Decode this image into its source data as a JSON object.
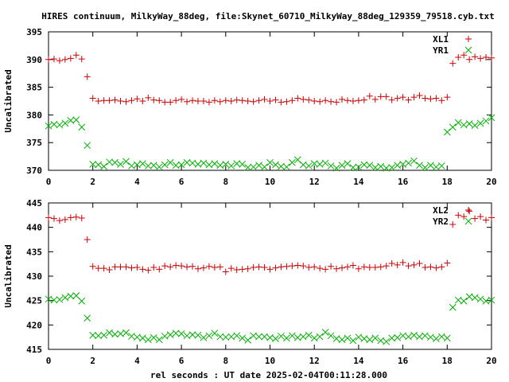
{
  "title": "HIRES continuum, MilkyWay_88deg, file:Skynet_60710_MilkyWay_88deg_129359_79518.cyb.txt",
  "xlabel": "rel seconds : UT date 2025-02-04T00:11:28.000",
  "colors": {
    "red": "#cc0000",
    "green": "#00b000",
    "axis": "#000000"
  },
  "chart_data": [
    {
      "type": "scatter",
      "ylabel": "Uncalibrated",
      "xlim": [
        0,
        20
      ],
      "ylim": [
        370,
        395
      ],
      "xticks": [
        0,
        2,
        4,
        6,
        8,
        10,
        12,
        14,
        16,
        18,
        20
      ],
      "yticks": [
        370,
        375,
        380,
        385,
        390,
        395
      ],
      "legend_position": "top-right",
      "series": [
        {
          "name": "XL1",
          "marker": "+",
          "color": "#cc0000",
          "x": [
            0.0,
            0.25,
            0.5,
            0.75,
            1.0,
            1.25,
            1.5,
            1.75,
            2.0,
            2.25,
            2.5,
            2.75,
            3.0,
            3.25,
            3.5,
            3.75,
            4.0,
            4.25,
            4.5,
            4.75,
            5.0,
            5.25,
            5.5,
            5.75,
            6.0,
            6.25,
            6.5,
            6.75,
            7.0,
            7.25,
            7.5,
            7.75,
            8.0,
            8.25,
            8.5,
            8.75,
            9.0,
            9.25,
            9.5,
            9.75,
            10.0,
            10.25,
            10.5,
            10.75,
            11.0,
            11.25,
            11.5,
            11.75,
            12.0,
            12.25,
            12.5,
            12.75,
            13.0,
            13.25,
            13.5,
            13.75,
            14.0,
            14.25,
            14.5,
            14.75,
            15.0,
            15.25,
            15.5,
            15.75,
            16.0,
            16.25,
            16.5,
            16.75,
            17.0,
            17.25,
            17.5,
            17.75,
            18.0,
            18.25,
            18.5,
            18.75,
            19.0,
            19.25,
            19.5,
            19.75,
            20.0
          ],
          "y": [
            390.0,
            390.1,
            389.8,
            390.0,
            390.2,
            390.8,
            390.1,
            386.9,
            383.0,
            382.5,
            382.6,
            382.6,
            382.7,
            382.5,
            382.4,
            382.6,
            382.9,
            382.5,
            383.1,
            382.7,
            382.6,
            382.3,
            382.3,
            382.6,
            382.8,
            382.4,
            382.6,
            382.5,
            382.5,
            382.3,
            382.6,
            382.4,
            382.6,
            382.5,
            382.7,
            382.6,
            382.5,
            382.4,
            382.6,
            382.8,
            382.5,
            382.7,
            382.3,
            382.4,
            382.6,
            383.0,
            382.8,
            382.7,
            382.5,
            382.4,
            382.6,
            382.4,
            382.3,
            382.8,
            382.6,
            382.5,
            382.6,
            382.7,
            383.4,
            382.8,
            383.3,
            383.3,
            382.7,
            383.0,
            383.2,
            382.7,
            383.2,
            383.5,
            383.0,
            382.9,
            383.0,
            382.6,
            383.2,
            389.3,
            390.4,
            390.8,
            390.0,
            390.5,
            390.2,
            390.4,
            390.3
          ]
        },
        {
          "name": "YR1",
          "marker": "x",
          "color": "#00b000",
          "x": [
            0.0,
            0.25,
            0.5,
            0.75,
            1.0,
            1.25,
            1.5,
            1.75,
            2.0,
            2.25,
            2.5,
            2.75,
            3.0,
            3.25,
            3.5,
            3.75,
            4.0,
            4.25,
            4.5,
            4.75,
            5.0,
            5.25,
            5.5,
            5.75,
            6.0,
            6.25,
            6.5,
            6.75,
            7.0,
            7.25,
            7.5,
            7.75,
            8.0,
            8.25,
            8.5,
            8.75,
            9.0,
            9.25,
            9.5,
            9.75,
            10.0,
            10.25,
            10.5,
            10.75,
            11.0,
            11.25,
            11.5,
            11.75,
            12.0,
            12.25,
            12.5,
            12.75,
            13.0,
            13.25,
            13.5,
            13.75,
            14.0,
            14.25,
            14.5,
            14.75,
            15.0,
            15.25,
            15.5,
            15.75,
            16.0,
            16.25,
            16.5,
            16.75,
            17.0,
            17.25,
            17.5,
            17.75,
            18.0,
            18.25,
            18.5,
            18.75,
            19.0,
            19.25,
            19.5,
            19.75,
            20.0
          ],
          "y": [
            378.0,
            378.3,
            378.2,
            378.5,
            379.0,
            379.1,
            377.8,
            374.5,
            371.1,
            371.0,
            370.7,
            371.5,
            371.4,
            371.1,
            371.6,
            370.8,
            371.0,
            371.2,
            370.8,
            370.9,
            370.6,
            371.0,
            371.4,
            370.9,
            371.0,
            371.4,
            371.3,
            371.1,
            371.3,
            371.0,
            371.2,
            370.9,
            371.1,
            370.8,
            371.2,
            371.1,
            370.5,
            370.6,
            370.9,
            370.6,
            371.4,
            371.0,
            370.7,
            370.6,
            371.4,
            371.9,
            371.0,
            370.8,
            371.2,
            371.1,
            371.3,
            370.8,
            370.4,
            370.9,
            371.2,
            370.5,
            370.6,
            371.0,
            370.9,
            370.5,
            370.7,
            370.4,
            370.5,
            370.9,
            371.1,
            371.3,
            371.7,
            370.9,
            370.5,
            370.9,
            370.6,
            370.8,
            376.9,
            377.8,
            378.6,
            378.2,
            378.4,
            378.1,
            378.5,
            378.9,
            379.5
          ]
        }
      ]
    },
    {
      "type": "scatter",
      "ylabel": "Uncalibrated",
      "xlim": [
        0,
        20
      ],
      "ylim": [
        415,
        445
      ],
      "xticks": [
        0,
        2,
        4,
        6,
        8,
        10,
        12,
        14,
        16,
        18,
        20
      ],
      "yticks": [
        415,
        420,
        425,
        430,
        435,
        440,
        445
      ],
      "legend_position": "top-right",
      "series": [
        {
          "name": "XL2",
          "marker": "+",
          "color": "#cc0000",
          "x": [
            0.0,
            0.25,
            0.5,
            0.75,
            1.0,
            1.25,
            1.5,
            1.75,
            2.0,
            2.25,
            2.5,
            2.75,
            3.0,
            3.25,
            3.5,
            3.75,
            4.0,
            4.25,
            4.5,
            4.75,
            5.0,
            5.25,
            5.5,
            5.75,
            6.0,
            6.25,
            6.5,
            6.75,
            7.0,
            7.25,
            7.5,
            7.75,
            8.0,
            8.25,
            8.5,
            8.75,
            9.0,
            9.25,
            9.5,
            9.75,
            10.0,
            10.25,
            10.5,
            10.75,
            11.0,
            11.25,
            11.5,
            11.75,
            12.0,
            12.25,
            12.5,
            12.75,
            13.0,
            13.25,
            13.5,
            13.75,
            14.0,
            14.25,
            14.5,
            14.75,
            15.0,
            15.25,
            15.5,
            15.75,
            16.0,
            16.25,
            16.5,
            16.75,
            17.0,
            17.25,
            17.5,
            17.75,
            18.0,
            18.25,
            18.5,
            18.75,
            19.0,
            19.25,
            19.5,
            19.75,
            20.0
          ],
          "y": [
            442.0,
            441.8,
            441.4,
            441.6,
            442.0,
            442.1,
            441.9,
            437.5,
            432.0,
            431.6,
            431.6,
            431.3,
            431.9,
            431.9,
            431.9,
            431.7,
            431.8,
            431.4,
            431.2,
            431.8,
            431.4,
            432.1,
            431.9,
            432.2,
            432.1,
            431.9,
            432.0,
            431.5,
            431.7,
            432.0,
            431.8,
            431.9,
            430.9,
            431.6,
            431.3,
            431.4,
            431.5,
            431.8,
            431.9,
            431.8,
            431.4,
            431.7,
            431.9,
            432.0,
            432.1,
            432.2,
            432.1,
            431.8,
            431.9,
            431.6,
            431.4,
            432.0,
            431.5,
            431.7,
            431.9,
            432.2,
            431.5,
            431.9,
            431.8,
            431.8,
            431.9,
            432.1,
            432.6,
            432.3,
            432.8,
            432.1,
            432.3,
            432.6,
            431.8,
            431.9,
            431.7,
            431.9,
            432.7,
            440.6,
            442.5,
            442.2,
            443.3,
            441.8,
            442.2,
            441.5,
            442.0
          ]
        },
        {
          "name": "YR2",
          "marker": "x",
          "color": "#00b000",
          "x": [
            0.0,
            0.25,
            0.5,
            0.75,
            1.0,
            1.25,
            1.5,
            1.75,
            2.0,
            2.25,
            2.5,
            2.75,
            3.0,
            3.25,
            3.5,
            3.75,
            4.0,
            4.25,
            4.5,
            4.75,
            5.0,
            5.25,
            5.5,
            5.75,
            6.0,
            6.25,
            6.5,
            6.75,
            7.0,
            7.25,
            7.5,
            7.75,
            8.0,
            8.25,
            8.5,
            8.75,
            9.0,
            9.25,
            9.5,
            9.75,
            10.0,
            10.25,
            10.5,
            10.75,
            11.0,
            11.25,
            11.5,
            11.75,
            12.0,
            12.25,
            12.5,
            12.75,
            13.0,
            13.25,
            13.5,
            13.75,
            14.0,
            14.25,
            14.5,
            14.75,
            15.0,
            15.25,
            15.5,
            15.75,
            16.0,
            16.25,
            16.5,
            16.75,
            17.0,
            17.25,
            17.5,
            17.75,
            18.0,
            18.25,
            18.5,
            18.75,
            19.0,
            19.25,
            19.5,
            19.75,
            20.0
          ],
          "y": [
            425.3,
            425.1,
            425.2,
            425.6,
            425.9,
            426.0,
            424.9,
            421.4,
            417.9,
            417.8,
            417.9,
            418.4,
            418.1,
            418.2,
            418.4,
            417.7,
            417.5,
            417.3,
            417.0,
            417.4,
            417.0,
            417.7,
            418.0,
            418.3,
            418.2,
            417.8,
            418.0,
            417.9,
            417.4,
            417.8,
            418.3,
            417.6,
            417.5,
            417.6,
            417.8,
            417.3,
            416.9,
            417.8,
            417.6,
            417.6,
            417.4,
            417.2,
            417.7,
            417.3,
            417.8,
            417.4,
            417.6,
            417.9,
            417.3,
            417.6,
            418.5,
            417.8,
            417.2,
            417.0,
            417.3,
            416.8,
            417.5,
            417.2,
            417.0,
            417.3,
            416.8,
            416.6,
            417.3,
            417.4,
            417.8,
            417.6,
            417.9,
            417.6,
            417.8,
            417.5,
            417.2,
            417.6,
            417.3,
            423.6,
            425.1,
            424.9,
            425.8,
            425.6,
            425.3,
            424.9,
            425.1
          ]
        }
      ]
    }
  ]
}
